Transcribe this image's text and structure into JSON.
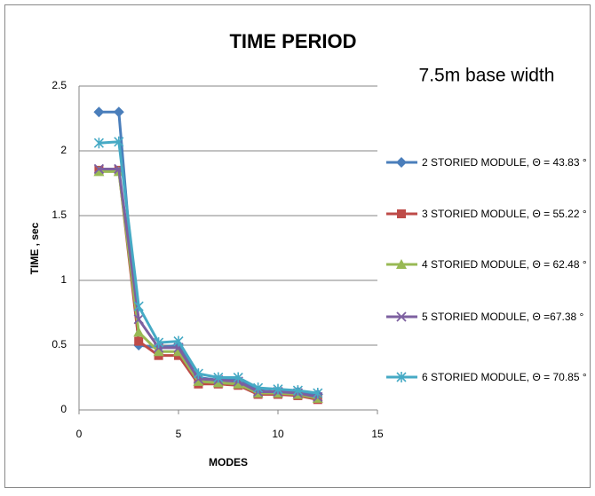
{
  "chart_data": {
    "type": "line",
    "title": "TIME PERIOD",
    "annotation": "7.5m base width",
    "x_label": "MODES",
    "y_label": "TIME , sec",
    "xlim": [
      0,
      15
    ],
    "xticks": [
      0,
      5,
      10,
      15
    ],
    "ylim": [
      0,
      2.5
    ],
    "yticks": [
      0,
      0.5,
      1,
      1.5,
      2,
      2.5
    ],
    "grid": true,
    "legend": "right",
    "x": [
      1,
      2,
      3,
      4,
      5,
      6,
      7,
      8,
      9,
      10,
      11,
      12
    ],
    "series": [
      {
        "name": "2 STORIED MODULE, Θ = 43.83 °",
        "color": "#4a7ebb",
        "marker": "diamond",
        "values": [
          2.3,
          2.3,
          0.5,
          0.48,
          0.5,
          0.25,
          0.23,
          0.23,
          0.15,
          0.14,
          0.14,
          0.12
        ]
      },
      {
        "name": "3 STORIED MODULE, Θ = 55.22 °",
        "color": "#be4b48",
        "marker": "square",
        "values": [
          1.85,
          1.85,
          0.53,
          0.42,
          0.42,
          0.2,
          0.2,
          0.19,
          0.12,
          0.12,
          0.11,
          0.08
        ]
      },
      {
        "name": "4 STORIED MODULE, Θ = 62.48 °",
        "color": "#98b954",
        "marker": "triangle",
        "values": [
          1.84,
          1.84,
          0.6,
          0.45,
          0.45,
          0.22,
          0.21,
          0.2,
          0.13,
          0.13,
          0.12,
          0.09
        ]
      },
      {
        "name": "5 STORIED MODULE, Θ =67.38 °",
        "color": "#7d60a0",
        "marker": "x",
        "values": [
          1.86,
          1.86,
          0.7,
          0.48,
          0.48,
          0.24,
          0.23,
          0.22,
          0.14,
          0.14,
          0.13,
          0.1
        ]
      },
      {
        "name": "6 STORIED MODULE, Θ = 70.85 °",
        "color": "#46aac5",
        "marker": "star",
        "values": [
          2.06,
          2.07,
          0.8,
          0.52,
          0.53,
          0.28,
          0.25,
          0.25,
          0.17,
          0.16,
          0.15,
          0.13
        ]
      }
    ]
  }
}
